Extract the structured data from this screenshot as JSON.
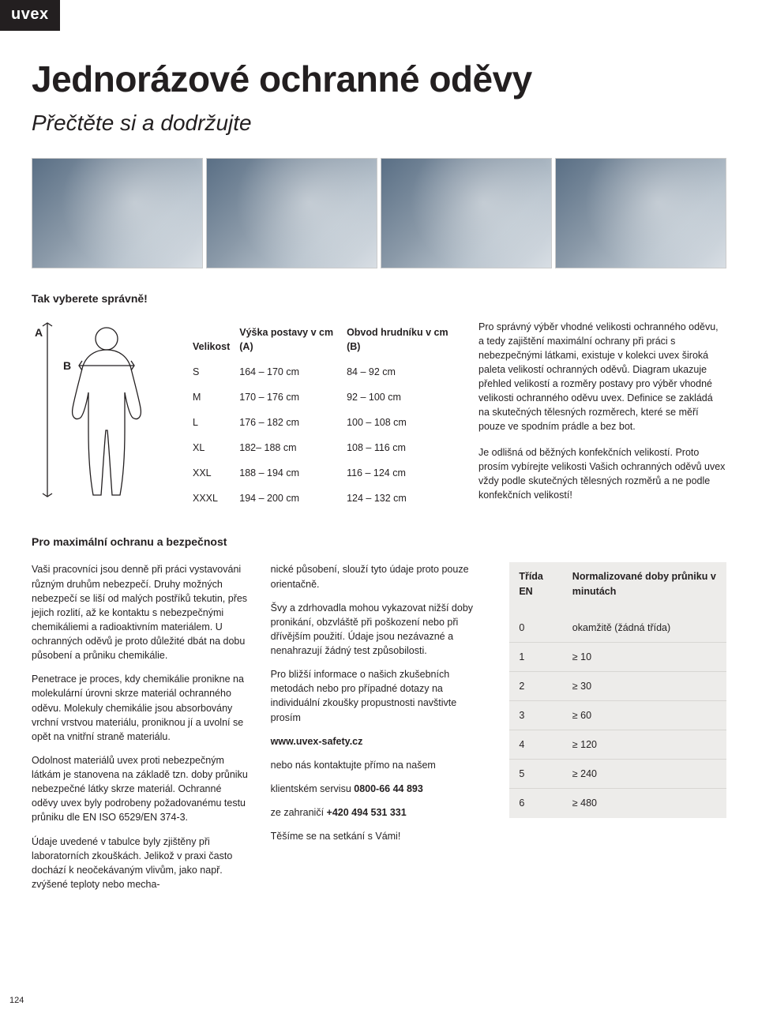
{
  "brand": "uvex",
  "title": "Jednorázové ochranné oděvy",
  "subtitle": "Přečtěte si a dodržujte",
  "section_choose": "Tak vyberete správně!",
  "figure": {
    "label_a": "A",
    "label_b": "B"
  },
  "size_table": {
    "headers": [
      "Velikost",
      "Výška postavy v cm (A)",
      "Obvod hrudníku v cm (B)"
    ],
    "rows": [
      [
        "S",
        "164 – 170 cm",
        "84 – 92 cm"
      ],
      [
        "M",
        "170 – 176 cm",
        "92 – 100 cm"
      ],
      [
        "L",
        "176 – 182 cm",
        "100 – 108 cm"
      ],
      [
        "XL",
        "182– 188 cm",
        "108 – 116 cm"
      ],
      [
        "XXL",
        "188 – 194 cm",
        "116 – 124 cm"
      ],
      [
        "XXXL",
        "194 – 200 cm",
        "124 – 132 cm"
      ]
    ]
  },
  "intro": {
    "p1": "Pro správný výběr vhodné velikosti ochranného oděvu, a tedy zajištění maximální ochrany při práci s nebezpečnými látkami, existuje v kolekci uvex široká paleta velikostí ochranných oděvů. Diagram ukazuje přehled velikostí a rozměry postavy pro výběr vhodné velikosti ochranného oděvu uvex. Definice se zakládá na skutečných tělesných rozměrech, které se měří pouze ve spodním prádle a bez bot.",
    "p2": "Je odlišná od běžných konfekčních velikostí. Proto prosím vybírejte velikosti Vašich ochranných oděvů uvex vždy podle skutečných tělesných rozměrů a ne podle konfekčních velikostí!"
  },
  "section_safety": "Pro maximální ochranu a bezpečnost",
  "col1": {
    "p1": "Vaši pracovníci jsou denně při práci vystavováni různým druhům nebezpečí. Druhy možných nebezpečí se liší od malých postříků tekutin, přes jejich rozlití, až ke kontaktu s nebezpečnými chemikáliemi a radioaktivním materiálem. U ochranných oděvů je proto důležité dbát na dobu působení a průniku chemikálie.",
    "p2": "Penetrace je proces, kdy chemikálie pronikne na molekulární úrovni skrze materiál ochranného oděvu. Molekuly chemikálie jsou absorbovány vrchní vrstvou materiálu, proniknou jí a uvolní se opět na vnitřní straně materiálu.",
    "p3": "Odolnost materiálů uvex proti nebezpečným látkám je stanovena na základě tzn. doby průniku nebezpečné látky skrze materiál. Ochranné oděvy uvex byly podrobeny požadovanému testu průniku dle EN ISO 6529/EN 374-3.",
    "p4": "Údaje uvedené v tabulce byly zjištěny při laboratorních zkouškách. Jelikož v praxi často dochází k neočekávaným vlivům, jako např. zvýšené teploty nebo mecha-"
  },
  "col2": {
    "p1": "nické působení, slouží tyto údaje proto pouze orientačně.",
    "p2": "Švy a zdrhovadla mohou vykazovat nižší doby pronikání, obzvláště při poškození nebo při dřívějším použití. Údaje jsou nezávazné a nenahrazují žádný test způsobilosti.",
    "p3_pre": "Pro bližší informace o našich zkušebních metodách nebo pro případné dotazy na individuální zkoušky propustnosti navštivte prosím",
    "url": "www.uvex-safety.cz",
    "p4": "nebo nás kontaktujte přímo na našem",
    "p5_pre": "klientském servisu ",
    "p5_phone": "0800-66 44 893",
    "p6_pre": "ze zahraničí ",
    "p6_phone": "+420 494 531 331",
    "p7": "Těšíme se na setkání s Vámi!"
  },
  "class_table": {
    "headers": [
      "Třída EN",
      "Normalizované doby průniku v minutách"
    ],
    "rows": [
      [
        "0",
        "okamžitě (žádná třída)"
      ],
      [
        "1",
        "≥ 10"
      ],
      [
        "2",
        "≥ 30"
      ],
      [
        "3",
        "≥ 60"
      ],
      [
        "4",
        "≥ 120"
      ],
      [
        "5",
        "≥ 240"
      ],
      [
        "6",
        "≥ 480"
      ]
    ],
    "bg_color": "#edecea",
    "border_color": "#d8d6d3"
  },
  "page_number": "124"
}
